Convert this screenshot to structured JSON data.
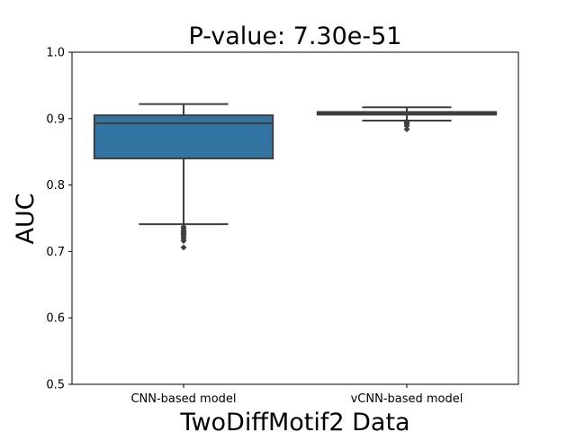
{
  "chart_data": {
    "type": "boxplot",
    "title": "P-value: 7.30e-51",
    "xlabel": "TwoDiffMotif2 Data",
    "ylabel": "AUC",
    "ylim": [
      0.5,
      1.0
    ],
    "yticks": [
      0.5,
      0.6,
      0.7,
      0.8,
      0.9,
      1.0
    ],
    "ytick_labels": [
      "0.5",
      "0.6",
      "0.7",
      "0.8",
      "0.9",
      "1.0"
    ],
    "grid": false,
    "categories": [
      "CNN-based model",
      "vCNN-based model"
    ],
    "boxes": [
      {
        "category": "CNN-based model",
        "whisker_low": 0.741,
        "q1": 0.84,
        "median": 0.893,
        "q3": 0.905,
        "whisker_high": 0.922,
        "outliers": [
          0.737,
          0.734,
          0.731,
          0.729,
          0.727,
          0.725,
          0.722,
          0.719,
          0.716,
          0.706
        ],
        "color": "#3274a1"
      },
      {
        "category": "vCNN-based model",
        "whisker_low": 0.897,
        "q1": 0.906,
        "median": 0.908,
        "q3": 0.91,
        "whisker_high": 0.917,
        "outliers": [
          0.896,
          0.894,
          0.892,
          0.889,
          0.884
        ],
        "color": "#3274a1"
      }
    ]
  }
}
